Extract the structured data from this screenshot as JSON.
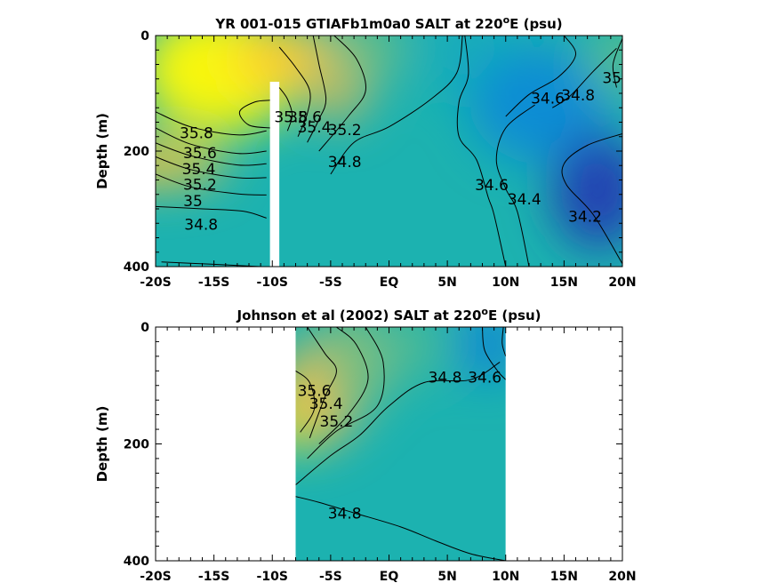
{
  "chart_data": [
    {
      "type": "contour",
      "title": "YR 001-015 GTIAFb1m0a0 SALT at 220",
      "title_sup": "o",
      "title_tail": "E (psu)",
      "ylabel": "Depth (m)",
      "xlim": [
        -20,
        20
      ],
      "ylim": [
        0,
        400
      ],
      "y_reversed": true,
      "x_ticks": [
        {
          "value": -20,
          "label": "-20S"
        },
        {
          "value": -15,
          "label": "-15S"
        },
        {
          "value": -10,
          "label": "-10S"
        },
        {
          "value": -5,
          "label": "-5S"
        },
        {
          "value": 0,
          "label": "EQ"
        },
        {
          "value": 5,
          "label": "5N"
        },
        {
          "value": 10,
          "label": "10N"
        },
        {
          "value": 15,
          "label": "15N"
        },
        {
          "value": 20,
          "label": "20N"
        }
      ],
      "y_ticks": [
        {
          "value": 0,
          "label": "0"
        },
        {
          "value": 200,
          "label": "200"
        },
        {
          "value": 400,
          "label": "400"
        }
      ],
      "data_gap": {
        "x": [
          -10.2,
          -9.4
        ],
        "depth": [
          80,
          400
        ]
      },
      "field_blobs": [
        {
          "x": -14.5,
          "depth": 60,
          "rx": 7,
          "ry": 110,
          "value": 35.95
        },
        {
          "x": -8.5,
          "depth": 40,
          "rx": 5,
          "ry": 60,
          "value": 35.6
        },
        {
          "x": -20,
          "depth": 220,
          "rx": 6,
          "ry": 40,
          "value": 35.5
        },
        {
          "x": -4.5,
          "depth": 80,
          "rx": 3,
          "ry": 70,
          "value": 35.3
        },
        {
          "x": -2,
          "depth": 20,
          "rx": 3,
          "ry": 60,
          "value": 35.05
        },
        {
          "x": 7,
          "depth": 30,
          "rx": 4,
          "ry": 80,
          "value": 34.75
        },
        {
          "x": 13,
          "depth": 120,
          "rx": 6,
          "ry": 100,
          "value": 34.5
        },
        {
          "x": 18,
          "depth": 270,
          "rx": 4,
          "ry": 100,
          "value": 34.1
        },
        {
          "x": 20,
          "depth": 40,
          "rx": 3,
          "ry": 60,
          "value": 35.0
        }
      ],
      "contours": [
        {
          "label": "35.8",
          "points": [
            [
              -20,
              132
            ],
            [
              -17,
              158
            ],
            [
              -13,
              172
            ],
            [
              -10.5,
              165
            ]
          ]
        },
        {
          "label": "35.6",
          "points": [
            [
              -20,
              160
            ],
            [
              -17,
              188
            ],
            [
              -13,
              204
            ],
            [
              -10.5,
              200
            ]
          ]
        },
        {
          "label": "35.4",
          "points": [
            [
              -20,
              186
            ],
            [
              -17,
              208
            ],
            [
              -13,
              224
            ],
            [
              -10.5,
              222
            ]
          ]
        },
        {
          "label": "35.2",
          "points": [
            [
              -20,
              210
            ],
            [
              -17,
              232
            ],
            [
              -13,
              246
            ],
            [
              -10.5,
              246
            ]
          ]
        },
        {
          "label": "35",
          "points": [
            [
              -20,
              240
            ],
            [
              -17,
              262
            ],
            [
              -13,
              274
            ],
            [
              -10.5,
              276
            ]
          ]
        },
        {
          "label": "34.8",
          "points": [
            [
              -20,
              296
            ],
            [
              -16,
              300
            ],
            [
              -12.5,
              304
            ],
            [
              -10.5,
              316
            ]
          ]
        },
        {
          "label": "",
          "points": [
            [
              -19.5,
              392
            ],
            [
              -15,
              396
            ],
            [
              -11,
              400
            ]
          ]
        },
        {
          "label": "",
          "points": [
            [
              -10.2,
              112
            ],
            [
              -11.5,
              115
            ],
            [
              -12.8,
              132
            ],
            [
              -12,
              155
            ],
            [
              -10.2,
              160
            ]
          ]
        },
        {
          "label": "35.8",
          "points": [
            [
              -9.4,
              90
            ],
            [
              -8.7,
              110
            ],
            [
              -8.3,
              138
            ],
            [
              -8.7,
              165
            ]
          ]
        },
        {
          "label": "35.6",
          "points": [
            [
              -9.4,
              20
            ],
            [
              -8,
              55
            ],
            [
              -6.8,
              95
            ],
            [
              -7,
              135
            ],
            [
              -7.8,
              175
            ]
          ]
        },
        {
          "label": "35.4",
          "points": [
            [
              -6.5,
              0
            ],
            [
              -6,
              50
            ],
            [
              -5.4,
              110
            ],
            [
              -6,
              145
            ],
            [
              -7,
              185
            ]
          ]
        },
        {
          "label": "35.2",
          "points": [
            [
              -4.7,
              0
            ],
            [
              -2.8,
              40
            ],
            [
              -2,
              95
            ],
            [
              -3.5,
              140
            ],
            [
              -6,
              200
            ]
          ]
        },
        {
          "label": "34.8",
          "points": [
            [
              6.3,
              0
            ],
            [
              5.8,
              65
            ],
            [
              3.6,
              110
            ],
            [
              0,
              158
            ],
            [
              -3,
              185
            ],
            [
              -5,
              240
            ]
          ]
        },
        {
          "label": "34.6",
          "points": [
            [
              6.5,
              0
            ],
            [
              6.8,
              68
            ],
            [
              6,
              115
            ],
            [
              6,
              175
            ],
            [
              7.5,
              215
            ],
            [
              8.5,
              280
            ],
            [
              9,
              310
            ],
            [
              10,
              400
            ]
          ]
        },
        {
          "label": "34.4",
          "points": [
            [
              12.5,
              120
            ],
            [
              10,
              160
            ],
            [
              9.2,
              215
            ],
            [
              10,
              265
            ],
            [
              11,
              305
            ],
            [
              12,
              400
            ]
          ]
        },
        {
          "label": "34.2",
          "points": [
            [
              20,
              170
            ],
            [
              17,
              190
            ],
            [
              15,
              222
            ],
            [
              15.2,
              258
            ],
            [
              17.5,
              310
            ],
            [
              20,
              395
            ]
          ]
        },
        {
          "label": "34.6",
          "points": [
            [
              15,
              0
            ],
            [
              16,
              33
            ],
            [
              14.5,
              72
            ],
            [
              12,
              102
            ],
            [
              10,
              140
            ]
          ]
        },
        {
          "label": "34.8",
          "points": [
            [
              19.5,
              22
            ],
            [
              17.5,
              62
            ],
            [
              15.5,
              105
            ],
            [
              14,
              125
            ]
          ]
        },
        {
          "label": "35",
          "points": [
            [
              20,
              5
            ],
            [
              19.2,
              50
            ],
            [
              19.5,
              90
            ]
          ]
        }
      ],
      "contour_labels": [
        {
          "text": "35.8",
          "x": -16.5,
          "depth": 178
        },
        {
          "text": "35.6",
          "x": -16.2,
          "depth": 212
        },
        {
          "text": "35.4",
          "x": -16.3,
          "depth": 240
        },
        {
          "text": "35.2",
          "x": -16.2,
          "depth": 267
        },
        {
          "text": "35",
          "x": -16.8,
          "depth": 295
        },
        {
          "text": "34.8",
          "x": -16.1,
          "depth": 336
        },
        {
          "text": "35.8",
          "x": -8.4,
          "depth": 150
        },
        {
          "text": "35.6",
          "x": -7.2,
          "depth": 150
        },
        {
          "text": "35.4",
          "x": -6.4,
          "depth": 168
        },
        {
          "text": "35.2",
          "x": -3.8,
          "depth": 172
        },
        {
          "text": "34.8",
          "x": -3.8,
          "depth": 228
        },
        {
          "text": "34.6",
          "x": 8.8,
          "depth": 268
        },
        {
          "text": "34.4",
          "x": 11.6,
          "depth": 292
        },
        {
          "text": "34.2",
          "x": 16.8,
          "depth": 322
        },
        {
          "text": "34.6",
          "x": 13.6,
          "depth": 118
        },
        {
          "text": "34.8",
          "x": 16.2,
          "depth": 112
        },
        {
          "text": "35",
          "x": 19.1,
          "depth": 82
        }
      ]
    },
    {
      "type": "contour",
      "title": "Johnson et al (2002) SALT at 220",
      "title_sup": "o",
      "title_tail": "E (psu)",
      "ylabel": "Depth (m)",
      "xlim": [
        -20,
        20
      ],
      "ylim": [
        0,
        400
      ],
      "y_reversed": true,
      "data_extent": {
        "x": [
          -8,
          10
        ],
        "depth": [
          0,
          400
        ]
      },
      "x_ticks": [
        {
          "value": -20,
          "label": "-20S"
        },
        {
          "value": -15,
          "label": "-15S"
        },
        {
          "value": -10,
          "label": "-10S"
        },
        {
          "value": -5,
          "label": "-5S"
        },
        {
          "value": 0,
          "label": "EQ"
        },
        {
          "value": 5,
          "label": "5N"
        },
        {
          "value": 10,
          "label": "10N"
        },
        {
          "value": 15,
          "label": "15N"
        },
        {
          "value": 20,
          "label": "20N"
        }
      ],
      "y_ticks": [
        {
          "value": 0,
          "label": "0"
        },
        {
          "value": 200,
          "label": "200"
        },
        {
          "value": 400,
          "label": "400"
        }
      ],
      "field_blobs": [
        {
          "x": -8,
          "depth": 150,
          "rx": 2.5,
          "ry": 60,
          "value": 35.95
        },
        {
          "x": -6,
          "depth": 110,
          "rx": 3.5,
          "ry": 90,
          "value": 35.45
        },
        {
          "x": -3,
          "depth": 60,
          "rx": 3,
          "ry": 90,
          "value": 35.1
        },
        {
          "x": 8.5,
          "depth": 30,
          "rx": 2.5,
          "ry": 60,
          "value": 34.45
        },
        {
          "x": 2,
          "depth": 30,
          "rx": 3,
          "ry": 60,
          "value": 34.95
        }
      ],
      "contours": [
        {
          "label": "35.6",
          "points": [
            [
              -8,
              75
            ],
            [
              -6.8,
              95
            ],
            [
              -6.4,
              140
            ],
            [
              -7.6,
              180
            ]
          ]
        },
        {
          "label": "35.4",
          "points": [
            [
              -7,
              0
            ],
            [
              -5.5,
              45
            ],
            [
              -4.5,
              75
            ],
            [
              -5.5,
              120
            ],
            [
              -6.8,
              190
            ]
          ]
        },
        {
          "label": "35.2",
          "points": [
            [
              -4.5,
              0
            ],
            [
              -2.8,
              30
            ],
            [
              -1.8,
              90
            ],
            [
              -3.5,
              150
            ],
            [
              -6,
              200
            ]
          ]
        },
        {
          "label": "",
          "points": [
            [
              -2,
              0
            ],
            [
              -0.5,
              60
            ],
            [
              -1,
              135
            ],
            [
              -4.5,
              178
            ],
            [
              -7,
              225
            ]
          ]
        },
        {
          "label": "34.8",
          "points": [
            [
              9.5,
              60
            ],
            [
              7,
              90
            ],
            [
              3,
              95
            ],
            [
              0,
              135
            ],
            [
              -2.5,
              185
            ],
            [
              -5,
              220
            ],
            [
              -8,
              270
            ]
          ]
        },
        {
          "label": "34.8",
          "points": [
            [
              -8,
              290
            ],
            [
              -6,
              300
            ],
            [
              -3,
              318
            ],
            [
              1,
              342
            ],
            [
              4,
              366
            ],
            [
              7,
              388
            ],
            [
              10,
              400
            ]
          ]
        },
        {
          "label": "34.6",
          "points": [
            [
              8,
              0
            ],
            [
              8.2,
              40
            ],
            [
              9.3,
              75
            ],
            [
              10,
              90
            ]
          ]
        },
        {
          "label": "",
          "points": [
            [
              9.8,
              0
            ],
            [
              9.7,
              28
            ],
            [
              10,
              50
            ]
          ]
        }
      ],
      "contour_labels": [
        {
          "text": "35.6",
          "x": -6.4,
          "depth": 118
        },
        {
          "text": "35.4",
          "x": -5.4,
          "depth": 140
        },
        {
          "text": "35.2",
          "x": -4.5,
          "depth": 170
        },
        {
          "text": "34.8",
          "x": 4.8,
          "depth": 95
        },
        {
          "text": "34.6",
          "x": 8.2,
          "depth": 95
        },
        {
          "text": "34.8",
          "x": -3.8,
          "depth": 328
        }
      ]
    }
  ]
}
